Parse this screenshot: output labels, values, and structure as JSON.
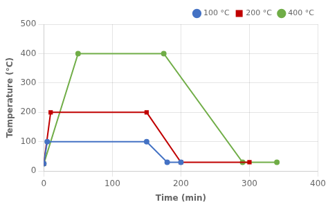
{
  "chart_data": {
    "type": "line",
    "x_label": "Time (min)",
    "y_label": "Temperature (°C)",
    "series": [
      {
        "name": "100 °C",
        "color": "#4472C4",
        "marker": "circle",
        "line_style": "solid",
        "x": [
          0,
          5,
          150,
          180,
          200
        ],
        "values": [
          25,
          100,
          100,
          30,
          30
        ]
      },
      {
        "name": "200 °C",
        "color": "#C00000",
        "marker": "square",
        "line_style": "solid",
        "x": [
          0,
          10,
          150,
          200,
          300
        ],
        "values": [
          25,
          200,
          200,
          30,
          30
        ]
      },
      {
        "name": "400 °C",
        "color": "#70AD47",
        "marker": "circle",
        "line_style": "solid",
        "x": [
          0,
          50,
          175,
          290,
          340
        ],
        "values": [
          25,
          400,
          400,
          30,
          30
        ]
      }
    ],
    "xlim": [
      0,
      400
    ],
    "ylim": [
      0,
      500
    ],
    "xticks": [
      0,
      100,
      200,
      300,
      400
    ],
    "yticks": [
      0,
      100,
      200,
      300,
      400,
      500
    ],
    "grid": true,
    "legend": "upper right"
  }
}
